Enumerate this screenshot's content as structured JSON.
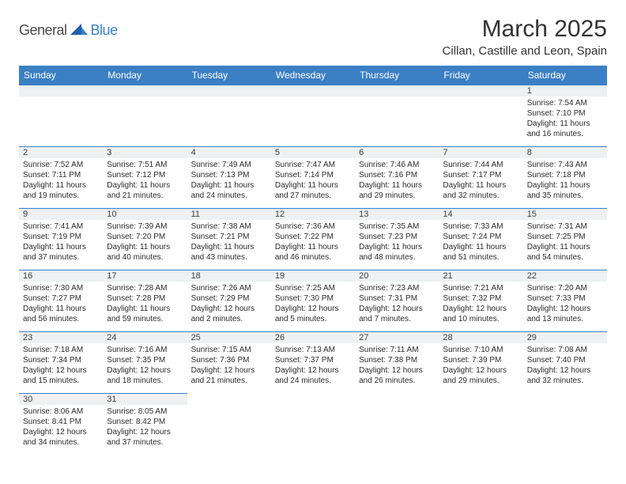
{
  "logo": {
    "general": "General",
    "blue": "Blue"
  },
  "title": "March 2025",
  "location": "Cillan, Castille and Leon, Spain",
  "colors": {
    "header_bg": "#3b7fc4",
    "header_text": "#ffffff",
    "daybar_bg": "#eef0f1",
    "border": "#3b7fc4"
  },
  "days_of_week": [
    "Sunday",
    "Monday",
    "Tuesday",
    "Wednesday",
    "Thursday",
    "Friday",
    "Saturday"
  ],
  "weeks": [
    [
      null,
      null,
      null,
      null,
      null,
      null,
      {
        "n": "1",
        "sr": "Sunrise: 7:54 AM",
        "ss": "Sunset: 7:10 PM",
        "dl": "Daylight: 11 hours and 16 minutes."
      }
    ],
    [
      {
        "n": "2",
        "sr": "Sunrise: 7:52 AM",
        "ss": "Sunset: 7:11 PM",
        "dl": "Daylight: 11 hours and 19 minutes."
      },
      {
        "n": "3",
        "sr": "Sunrise: 7:51 AM",
        "ss": "Sunset: 7:12 PM",
        "dl": "Daylight: 11 hours and 21 minutes."
      },
      {
        "n": "4",
        "sr": "Sunrise: 7:49 AM",
        "ss": "Sunset: 7:13 PM",
        "dl": "Daylight: 11 hours and 24 minutes."
      },
      {
        "n": "5",
        "sr": "Sunrise: 7:47 AM",
        "ss": "Sunset: 7:14 PM",
        "dl": "Daylight: 11 hours and 27 minutes."
      },
      {
        "n": "6",
        "sr": "Sunrise: 7:46 AM",
        "ss": "Sunset: 7:16 PM",
        "dl": "Daylight: 11 hours and 29 minutes."
      },
      {
        "n": "7",
        "sr": "Sunrise: 7:44 AM",
        "ss": "Sunset: 7:17 PM",
        "dl": "Daylight: 11 hours and 32 minutes."
      },
      {
        "n": "8",
        "sr": "Sunrise: 7:43 AM",
        "ss": "Sunset: 7:18 PM",
        "dl": "Daylight: 11 hours and 35 minutes."
      }
    ],
    [
      {
        "n": "9",
        "sr": "Sunrise: 7:41 AM",
        "ss": "Sunset: 7:19 PM",
        "dl": "Daylight: 11 hours and 37 minutes."
      },
      {
        "n": "10",
        "sr": "Sunrise: 7:39 AM",
        "ss": "Sunset: 7:20 PM",
        "dl": "Daylight: 11 hours and 40 minutes."
      },
      {
        "n": "11",
        "sr": "Sunrise: 7:38 AM",
        "ss": "Sunset: 7:21 PM",
        "dl": "Daylight: 11 hours and 43 minutes."
      },
      {
        "n": "12",
        "sr": "Sunrise: 7:36 AM",
        "ss": "Sunset: 7:22 PM",
        "dl": "Daylight: 11 hours and 46 minutes."
      },
      {
        "n": "13",
        "sr": "Sunrise: 7:35 AM",
        "ss": "Sunset: 7:23 PM",
        "dl": "Daylight: 11 hours and 48 minutes."
      },
      {
        "n": "14",
        "sr": "Sunrise: 7:33 AM",
        "ss": "Sunset: 7:24 PM",
        "dl": "Daylight: 11 hours and 51 minutes."
      },
      {
        "n": "15",
        "sr": "Sunrise: 7:31 AM",
        "ss": "Sunset: 7:25 PM",
        "dl": "Daylight: 11 hours and 54 minutes."
      }
    ],
    [
      {
        "n": "16",
        "sr": "Sunrise: 7:30 AM",
        "ss": "Sunset: 7:27 PM",
        "dl": "Daylight: 11 hours and 56 minutes."
      },
      {
        "n": "17",
        "sr": "Sunrise: 7:28 AM",
        "ss": "Sunset: 7:28 PM",
        "dl": "Daylight: 11 hours and 59 minutes."
      },
      {
        "n": "18",
        "sr": "Sunrise: 7:26 AM",
        "ss": "Sunset: 7:29 PM",
        "dl": "Daylight: 12 hours and 2 minutes."
      },
      {
        "n": "19",
        "sr": "Sunrise: 7:25 AM",
        "ss": "Sunset: 7:30 PM",
        "dl": "Daylight: 12 hours and 5 minutes."
      },
      {
        "n": "20",
        "sr": "Sunrise: 7:23 AM",
        "ss": "Sunset: 7:31 PM",
        "dl": "Daylight: 12 hours and 7 minutes."
      },
      {
        "n": "21",
        "sr": "Sunrise: 7:21 AM",
        "ss": "Sunset: 7:32 PM",
        "dl": "Daylight: 12 hours and 10 minutes."
      },
      {
        "n": "22",
        "sr": "Sunrise: 7:20 AM",
        "ss": "Sunset: 7:33 PM",
        "dl": "Daylight: 12 hours and 13 minutes."
      }
    ],
    [
      {
        "n": "23",
        "sr": "Sunrise: 7:18 AM",
        "ss": "Sunset: 7:34 PM",
        "dl": "Daylight: 12 hours and 15 minutes."
      },
      {
        "n": "24",
        "sr": "Sunrise: 7:16 AM",
        "ss": "Sunset: 7:35 PM",
        "dl": "Daylight: 12 hours and 18 minutes."
      },
      {
        "n": "25",
        "sr": "Sunrise: 7:15 AM",
        "ss": "Sunset: 7:36 PM",
        "dl": "Daylight: 12 hours and 21 minutes."
      },
      {
        "n": "26",
        "sr": "Sunrise: 7:13 AM",
        "ss": "Sunset: 7:37 PM",
        "dl": "Daylight: 12 hours and 24 minutes."
      },
      {
        "n": "27",
        "sr": "Sunrise: 7:11 AM",
        "ss": "Sunset: 7:38 PM",
        "dl": "Daylight: 12 hours and 26 minutes."
      },
      {
        "n": "28",
        "sr": "Sunrise: 7:10 AM",
        "ss": "Sunset: 7:39 PM",
        "dl": "Daylight: 12 hours and 29 minutes."
      },
      {
        "n": "29",
        "sr": "Sunrise: 7:08 AM",
        "ss": "Sunset: 7:40 PM",
        "dl": "Daylight: 12 hours and 32 minutes."
      }
    ],
    [
      {
        "n": "30",
        "sr": "Sunrise: 8:06 AM",
        "ss": "Sunset: 8:41 PM",
        "dl": "Daylight: 12 hours and 34 minutes."
      },
      {
        "n": "31",
        "sr": "Sunrise: 8:05 AM",
        "ss": "Sunset: 8:42 PM",
        "dl": "Daylight: 12 hours and 37 minutes."
      },
      null,
      null,
      null,
      null,
      null
    ]
  ]
}
